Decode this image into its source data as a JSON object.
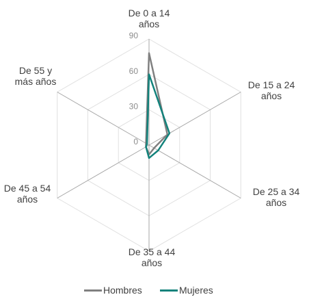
{
  "chart_data": {
    "type": "radar",
    "categories": [
      "De 0 a 14 años",
      "De 15 a 24 años",
      "De 25 a 34 años",
      "De 35 a 44 años",
      "De 45 a 54 años",
      "De 55 y más años"
    ],
    "series": [
      {
        "name": "Hombres",
        "color": "#808080",
        "values": [
          78,
          18,
          5,
          8,
          3,
          3
        ]
      },
      {
        "name": "Mujeres",
        "color": "#12827b",
        "values": [
          60,
          20,
          9,
          11,
          3,
          2
        ]
      }
    ],
    "ylim": [
      0,
      90
    ],
    "yticks": [
      0,
      30,
      60,
      90
    ],
    "grid": true,
    "legend": "bottom"
  }
}
